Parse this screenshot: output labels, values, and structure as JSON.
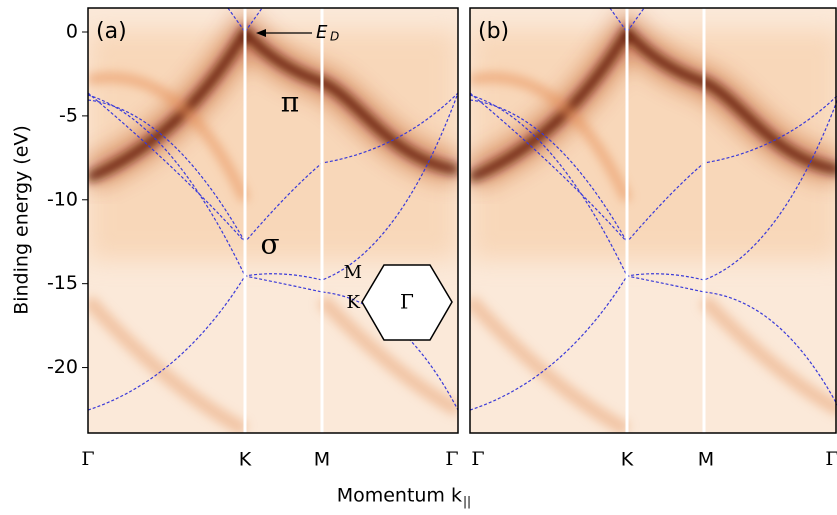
{
  "chart_data": {
    "type": "image",
    "ylabel": "Binding energy (eV)",
    "xlabel": "Momentum k",
    "xlabel_sub": "||",
    "ylim": [
      -23.9,
      1.43
    ],
    "yticks": [
      0,
      -5,
      -10,
      -15,
      -20
    ],
    "panels": [
      {
        "label": "(a)",
        "categories": [
          "Γ",
          "K",
          "M",
          "Γ"
        ]
      },
      {
        "label": "(b)",
        "categories": [
          "Γ",
          "K",
          "M",
          "Γ"
        ]
      }
    ],
    "annotations": {
      "dirac": {
        "text": "E",
        "sub": "D"
      },
      "pi": "π",
      "sigma": "σ",
      "hex_m": "M",
      "hex_k": "K",
      "hex_gamma": "Γ"
    }
  }
}
